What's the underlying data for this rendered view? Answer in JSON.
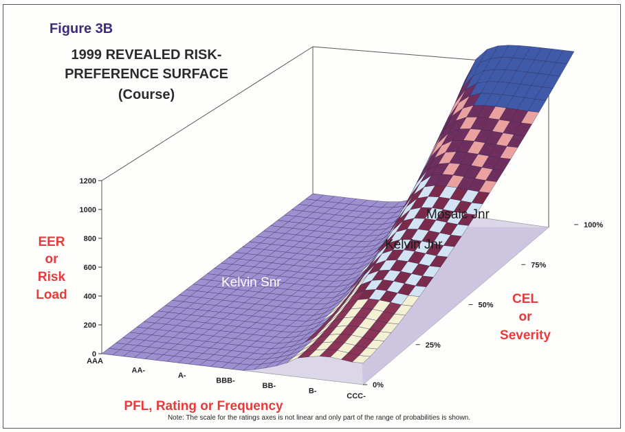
{
  "chart_data": {
    "type": "surface",
    "figure_label": "Figure 3B",
    "title_lines": [
      "1999 REVEALED RISK-",
      "PREFERENCE SURFACE",
      "(Course)"
    ],
    "zlabel_lines": [
      "EER",
      "or",
      "Risk",
      "Load"
    ],
    "ylabel_lines": [
      "CEL",
      "or",
      "Severity"
    ],
    "xlabel": "PFL, Rating or Frequency",
    "z_ticks": [
      "0",
      "200",
      "400",
      "600",
      "800",
      "1000",
      "1200"
    ],
    "x_ticks": [
      "AAA",
      "AA-",
      "A-",
      "BBB-",
      "BB-",
      "B-",
      "CCC-"
    ],
    "y_ticks": [
      "0%",
      "25%",
      "50%",
      "75%",
      "100%"
    ],
    "zlim": [
      0,
      1200
    ],
    "annotations": [
      {
        "label": "Mosaic Jnr"
      },
      {
        "label": "Kelvin Jnr"
      },
      {
        "label": "Kelvin Snr"
      }
    ],
    "note": "Note: The scale for the ratings axes is not linear and only part of the range of probabilities is shown."
  }
}
